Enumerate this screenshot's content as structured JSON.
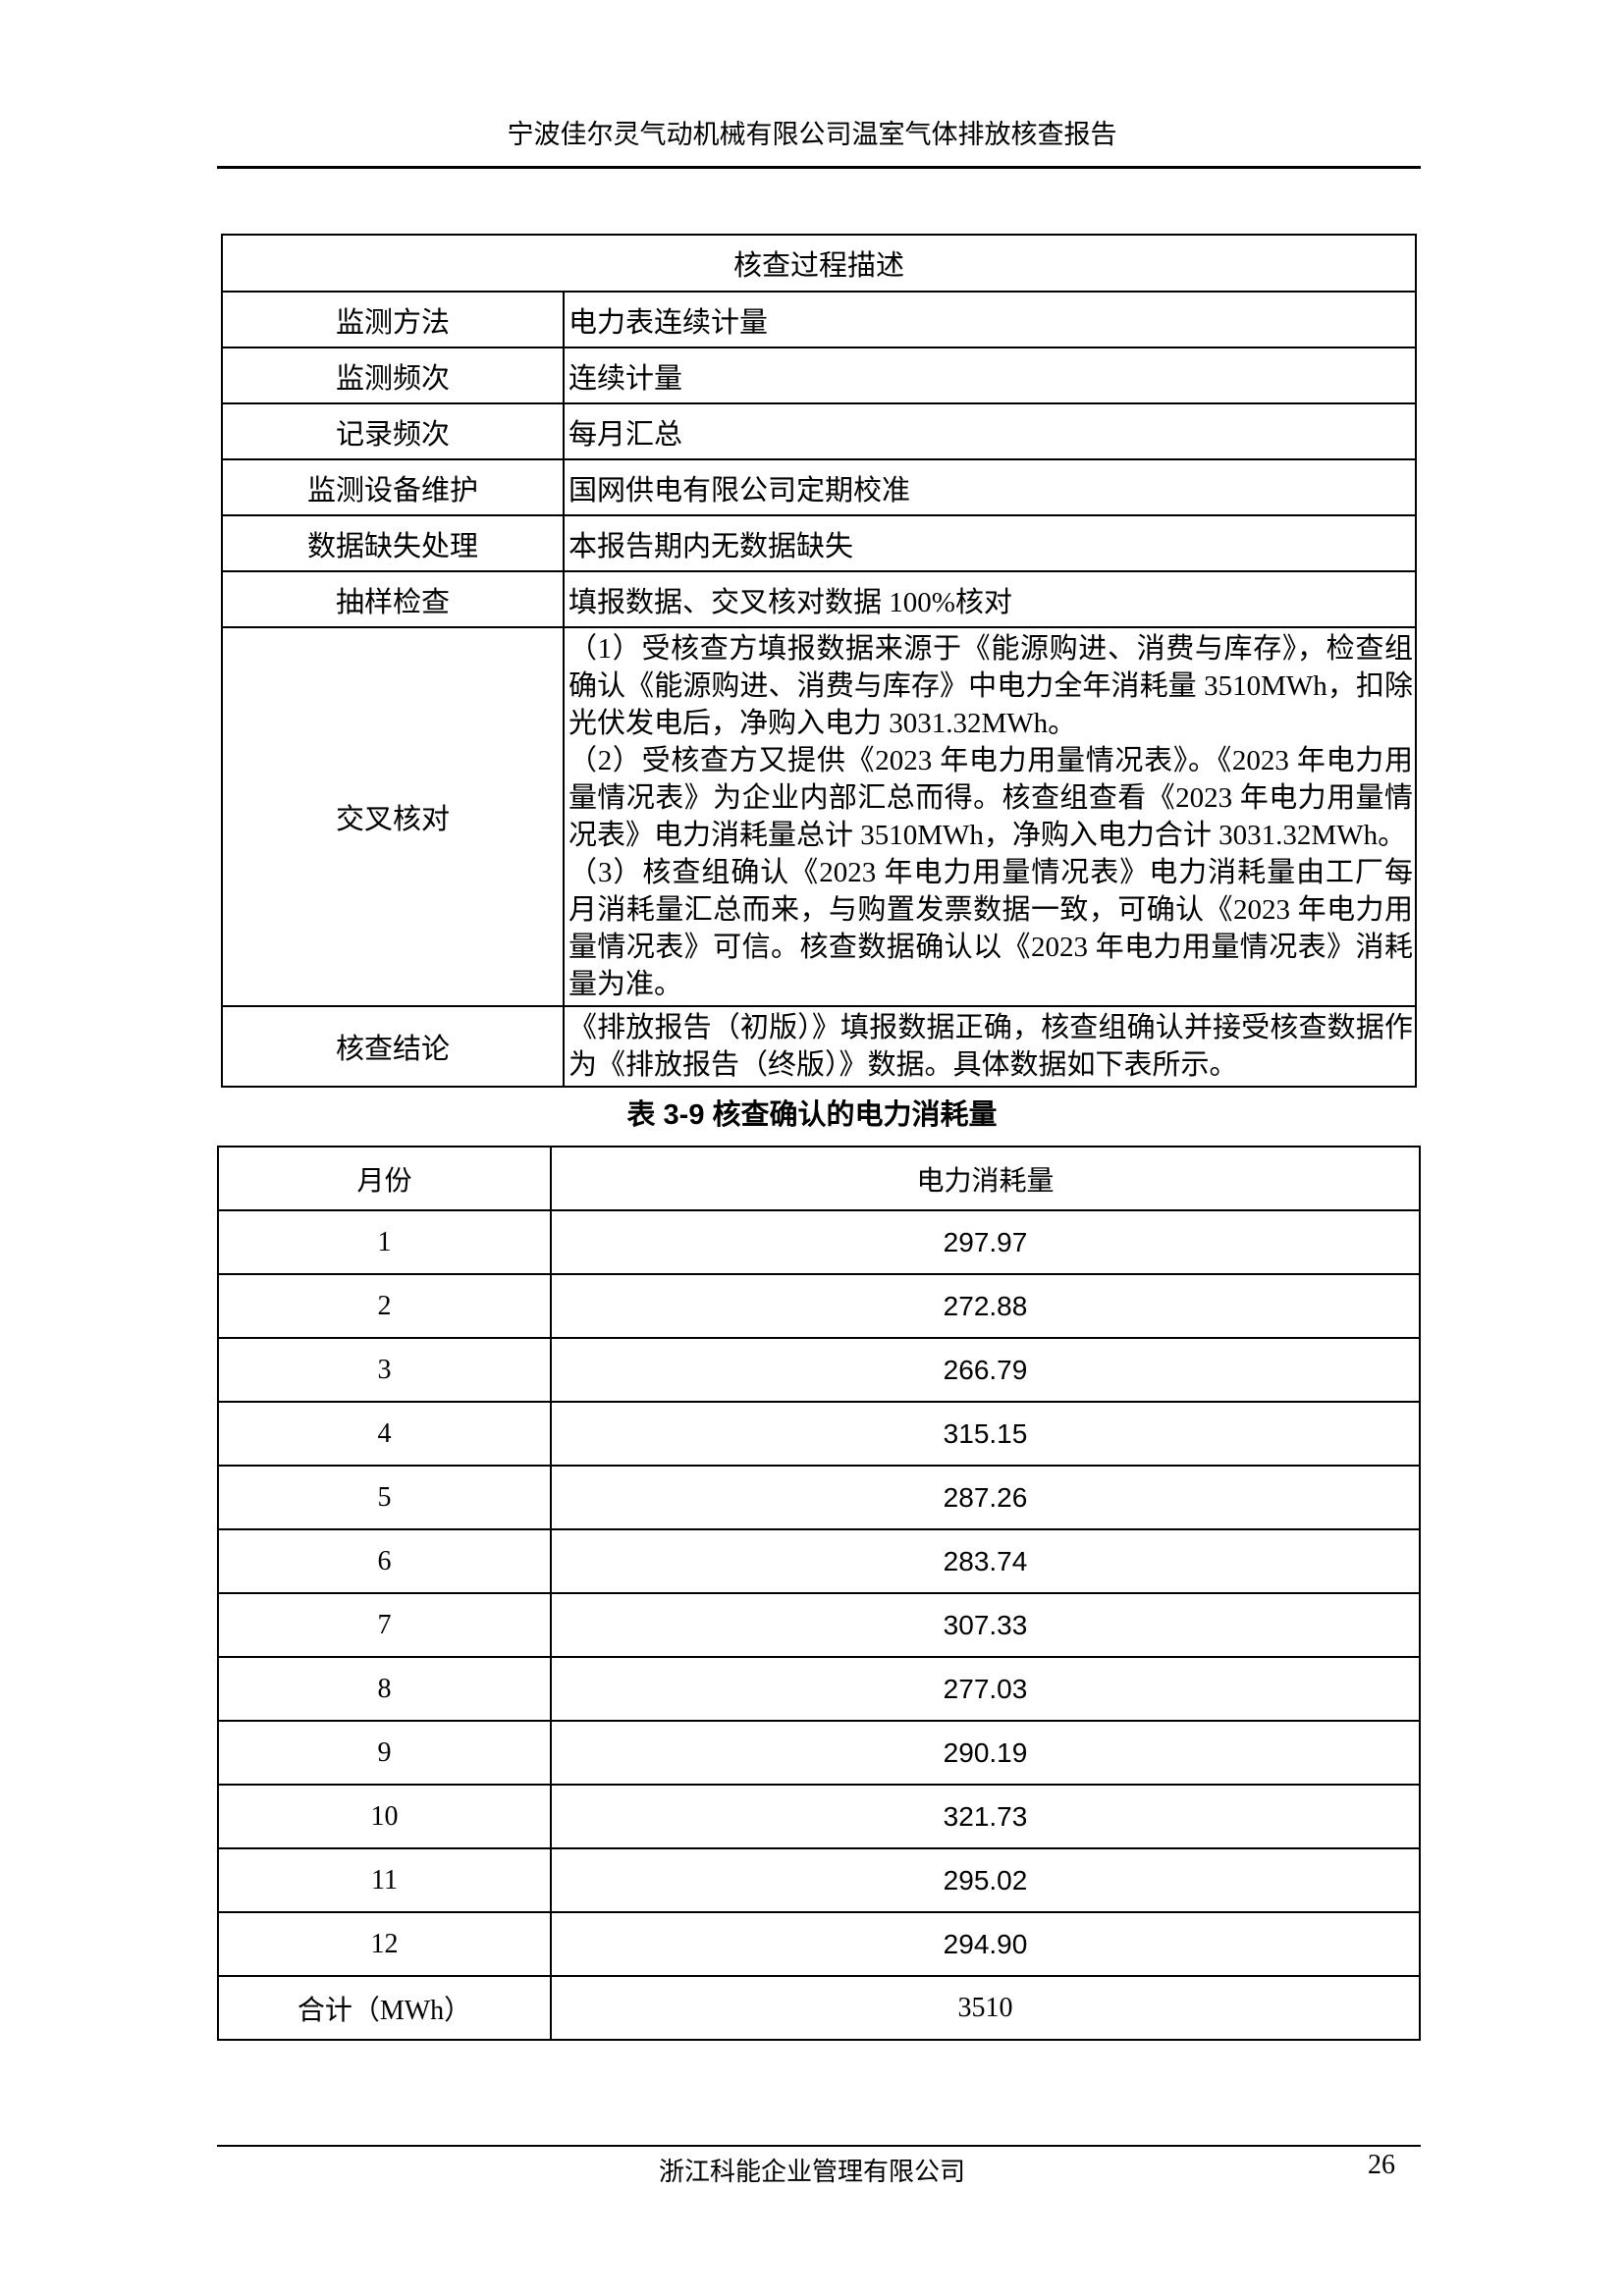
{
  "header": {
    "title": "宁波佳尔灵气动机械有限公司温室气体排放核查报告"
  },
  "process_table": {
    "title": "核查过程描述",
    "rows": [
      {
        "label": "监测方法",
        "value": "电力表连续计量"
      },
      {
        "label": "监测频次",
        "value": "连续计量"
      },
      {
        "label": "记录频次",
        "value": "每月汇总"
      },
      {
        "label": "监测设备维护",
        "value": "国网供电有限公司定期校准"
      },
      {
        "label": "数据缺失处理",
        "value": "本报告期内无数据缺失"
      },
      {
        "label": "抽样检查",
        "value": "填报数据、交叉核对数据 100%核对"
      }
    ],
    "cross_check": {
      "label": "交叉核对",
      "paragraphs": [
        "（1）受核查方填报数据来源于《能源购进、消费与库存》，检查组确认《能源购进、消费与库存》中电力全年消耗量 3510MWh，扣除光伏发电后，净购入电力 3031.32MWh。",
        "（2）受核查方又提供《2023 年电力用量情况表》。《2023 年电力用量情况表》为企业内部汇总而得。核查组查看《2023 年电力用量情况表》电力消耗量总计 3510MWh，净购入电力合计 3031.32MWh。",
        "（3）核查组确认《2023 年电力用量情况表》电力消耗量由工厂每月消耗量汇总而来，与购置发票数据一致，可确认《2023 年电力用量情况表》可信。核查数据确认以《2023 年电力用量情况表》消耗量为准。"
      ]
    },
    "conclusion": {
      "label": "核查结论",
      "value": "《排放报告（初版）》填报数据正确，核查组确认并接受核查数据作为《排放报告（终版）》数据。具体数据如下表所示。"
    }
  },
  "table_caption": "表 3-9 核查确认的电力消耗量",
  "consumption_table": {
    "headers": [
      "月份",
      "电力消耗量"
    ],
    "rows": [
      [
        "1",
        "297.97"
      ],
      [
        "2",
        "272.88"
      ],
      [
        "3",
        "266.79"
      ],
      [
        "4",
        "315.15"
      ],
      [
        "5",
        "287.26"
      ],
      [
        "6",
        "283.74"
      ],
      [
        "7",
        "307.33"
      ],
      [
        "8",
        "277.03"
      ],
      [
        "9",
        "290.19"
      ],
      [
        "10",
        "321.73"
      ],
      [
        "11",
        "295.02"
      ],
      [
        "12",
        "294.90"
      ]
    ],
    "total": [
      "合计（MWh）",
      "3510"
    ]
  },
  "footer": {
    "company": "浙江科能企业管理有限公司",
    "page_number": "26"
  }
}
